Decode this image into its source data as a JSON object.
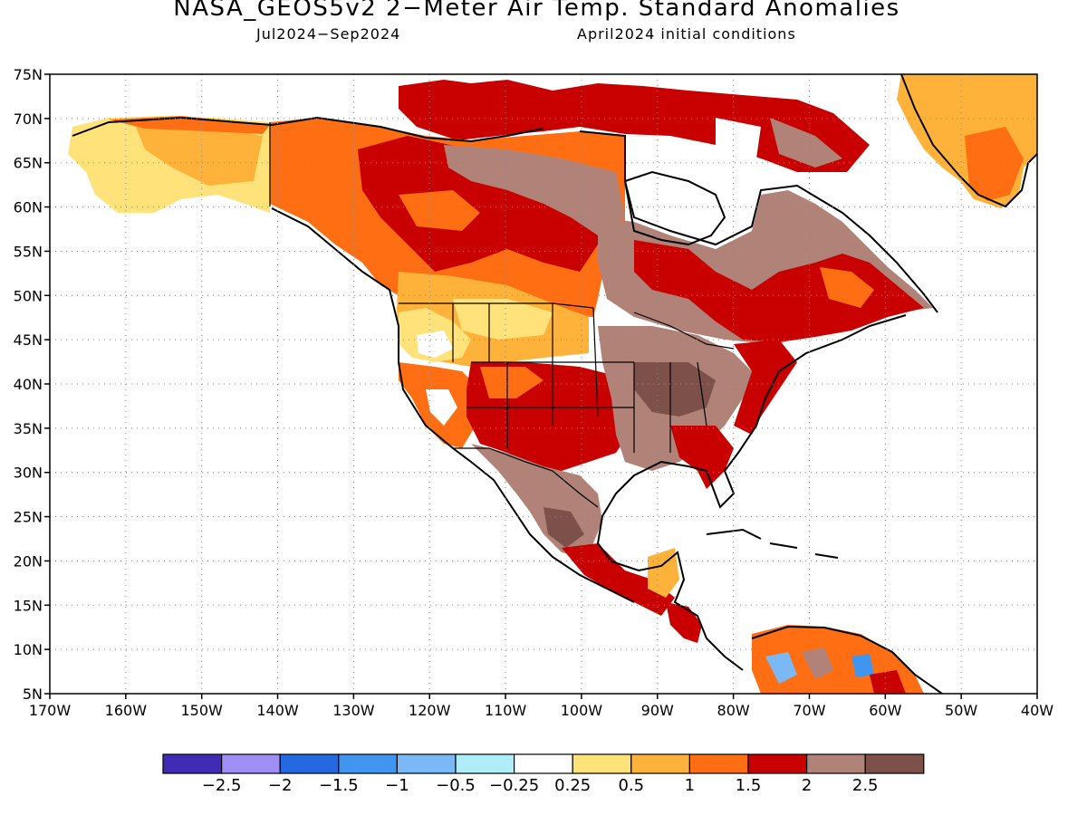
{
  "header": {
    "title": "NASA_GEOS5v2 2−Meter Air Temp. Standard Anomalies",
    "period": "Jul2024−Sep2024",
    "init": "April2024 initial conditions"
  },
  "axes": {
    "lon_labels": [
      "170W",
      "160W",
      "150W",
      "140W",
      "130W",
      "120W",
      "110W",
      "100W",
      "90W",
      "80W",
      "70W",
      "60W",
      "50W",
      "40W"
    ],
    "lat_labels": [
      "75N",
      "70N",
      "65N",
      "60N",
      "55N",
      "50N",
      "45N",
      "40N",
      "35N",
      "30N",
      "25N",
      "20N",
      "15N",
      "10N",
      "5N"
    ],
    "lon_range": [
      -170,
      -40
    ],
    "lat_range": [
      5,
      75
    ],
    "grid": "dotted"
  },
  "colorbar": {
    "colors": [
      "#3f2bb4",
      "#9f8ff5",
      "#2469e0",
      "#4096ee",
      "#7ab9f5",
      "#b0edfa",
      "#ffffff",
      "#ffe37a",
      "#ffb23a",
      "#ff6e12",
      "#c80000",
      "#b08278",
      "#7d514a"
    ],
    "labels": [
      "−2.5",
      "−2",
      "−1.5",
      "−1",
      "−0.5",
      "−0.25",
      "0.25",
      "0.5",
      "1",
      "1.5",
      "2",
      "2.5"
    ]
  },
  "regions": [
    {
      "name": "Alaska",
      "category": "0.25-0.5"
    },
    {
      "name": "Western Canada",
      "category": "1-1.5"
    },
    {
      "name": "Central Canada",
      "category": "1.5-2"
    },
    {
      "name": "Hudson Bay region",
      "category": "2-2.5"
    },
    {
      "name": "Northern Rockies / Plains",
      "category": "0.5-1"
    },
    {
      "name": "Southwest US",
      "category": "1.5-2"
    },
    {
      "name": "Midwest US",
      "category": ">2.5"
    },
    {
      "name": "Mexico",
      "category": "2-2.5"
    },
    {
      "name": "Greenland",
      "category": "0.5-1"
    },
    {
      "name": "Northern South America",
      "category": "1-1.5"
    }
  ]
}
